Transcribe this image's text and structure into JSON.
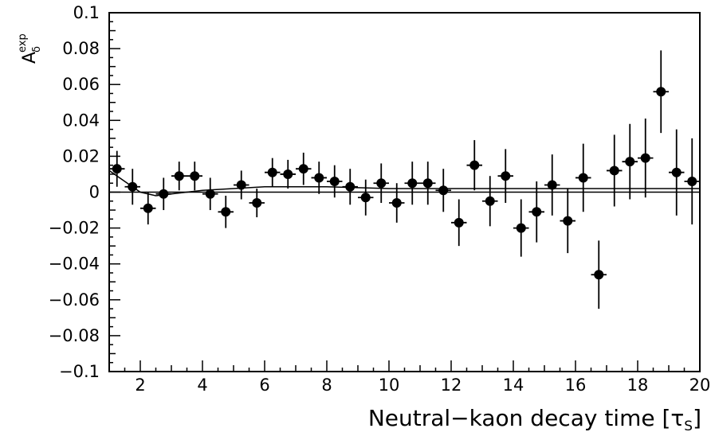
{
  "chart_data": {
    "type": "scatter",
    "title": "",
    "xlabel": "Neutral−kaon decay time [τ",
    "xlabel_sub": "S",
    "xlabel_close": "]",
    "ylabel_main": "A",
    "ylabel_sub": "δ",
    "ylabel_sup": "exp",
    "xlim": [
      1,
      20
    ],
    "ylim": [
      -0.1,
      0.1
    ],
    "x_ticks": [
      2,
      4,
      6,
      8,
      10,
      12,
      14,
      16,
      18,
      20
    ],
    "y_ticks": [
      -0.1,
      -0.08,
      -0.06,
      -0.04,
      -0.02,
      0,
      0.02,
      0.04,
      0.06,
      0.08,
      0.1
    ],
    "x_tick_labels": [
      "2",
      "4",
      "6",
      "8",
      "10",
      "12",
      "14",
      "16",
      "18",
      "20"
    ],
    "y_tick_labels": [
      "−0.1",
      "−0.08",
      "−0.06",
      "−0.04",
      "−0.02",
      "0",
      "0.02",
      "0.04",
      "0.06",
      "0.08",
      "0.1"
    ],
    "grid": false,
    "series": [
      {
        "points": [
          {
            "x": 1.25,
            "y": 0.013,
            "err": 0.01
          },
          {
            "x": 1.75,
            "y": 0.003,
            "err": 0.01
          },
          {
            "x": 2.25,
            "y": -0.009,
            "err": 0.009
          },
          {
            "x": 2.75,
            "y": -0.001,
            "err": 0.009
          },
          {
            "x": 3.25,
            "y": 0.009,
            "err": 0.008
          },
          {
            "x": 3.75,
            "y": 0.009,
            "err": 0.008
          },
          {
            "x": 4.25,
            "y": -0.001,
            "err": 0.009
          },
          {
            "x": 4.75,
            "y": -0.011,
            "err": 0.009
          },
          {
            "x": 5.25,
            "y": 0.004,
            "err": 0.008
          },
          {
            "x": 5.75,
            "y": -0.006,
            "err": 0.008
          },
          {
            "x": 6.25,
            "y": 0.011,
            "err": 0.008
          },
          {
            "x": 6.75,
            "y": 0.01,
            "err": 0.008
          },
          {
            "x": 7.25,
            "y": 0.013,
            "err": 0.009
          },
          {
            "x": 7.75,
            "y": 0.008,
            "err": 0.009
          },
          {
            "x": 8.25,
            "y": 0.006,
            "err": 0.009
          },
          {
            "x": 8.75,
            "y": 0.003,
            "err": 0.01
          },
          {
            "x": 9.25,
            "y": -0.003,
            "err": 0.01
          },
          {
            "x": 9.75,
            "y": 0.005,
            "err": 0.011
          },
          {
            "x": 10.25,
            "y": -0.006,
            "err": 0.011
          },
          {
            "x": 10.75,
            "y": 0.005,
            "err": 0.012
          },
          {
            "x": 11.25,
            "y": 0.005,
            "err": 0.012
          },
          {
            "x": 11.75,
            "y": 0.001,
            "err": 0.012
          },
          {
            "x": 12.25,
            "y": -0.017,
            "err": 0.013
          },
          {
            "x": 12.75,
            "y": 0.015,
            "err": 0.014
          },
          {
            "x": 13.25,
            "y": -0.005,
            "err": 0.014
          },
          {
            "x": 13.75,
            "y": 0.009,
            "err": 0.015
          },
          {
            "x": 14.25,
            "y": -0.02,
            "err": 0.016
          },
          {
            "x": 14.75,
            "y": -0.011,
            "err": 0.017
          },
          {
            "x": 15.25,
            "y": 0.004,
            "err": 0.017
          },
          {
            "x": 15.75,
            "y": -0.016,
            "err": 0.018
          },
          {
            "x": 16.25,
            "y": 0.008,
            "err": 0.019
          },
          {
            "x": 16.75,
            "y": -0.046,
            "err": 0.019
          },
          {
            "x": 17.25,
            "y": 0.012,
            "err": 0.02
          },
          {
            "x": 17.75,
            "y": 0.017,
            "err": 0.021
          },
          {
            "x": 18.25,
            "y": 0.019,
            "err": 0.022
          },
          {
            "x": 18.75,
            "y": 0.056,
            "err": 0.023
          },
          {
            "x": 19.25,
            "y": 0.011,
            "err": 0.024
          },
          {
            "x": 19.75,
            "y": 0.006,
            "err": 0.024
          }
        ]
      }
    ],
    "fit_curve": [
      {
        "x": 1.0,
        "y": 0.012
      },
      {
        "x": 1.5,
        "y": 0.006
      },
      {
        "x": 2.0,
        "y": 0.0
      },
      {
        "x": 2.5,
        "y": -0.002
      },
      {
        "x": 3.0,
        "y": -0.001
      },
      {
        "x": 3.5,
        "y": 0.0
      },
      {
        "x": 4.0,
        "y": 0.001
      },
      {
        "x": 5.0,
        "y": 0.002
      },
      {
        "x": 6.0,
        "y": 0.003
      },
      {
        "x": 7.0,
        "y": 0.003
      },
      {
        "x": 8.0,
        "y": 0.003
      },
      {
        "x": 10.0,
        "y": 0.002
      },
      {
        "x": 12.0,
        "y": 0.002
      },
      {
        "x": 14.0,
        "y": 0.002
      },
      {
        "x": 16.0,
        "y": 0.002
      },
      {
        "x": 18.0,
        "y": 0.002
      },
      {
        "x": 20.0,
        "y": 0.002
      }
    ],
    "colors": {
      "marker": "#000000",
      "axis": "#000000",
      "background": "#ffffff"
    }
  }
}
